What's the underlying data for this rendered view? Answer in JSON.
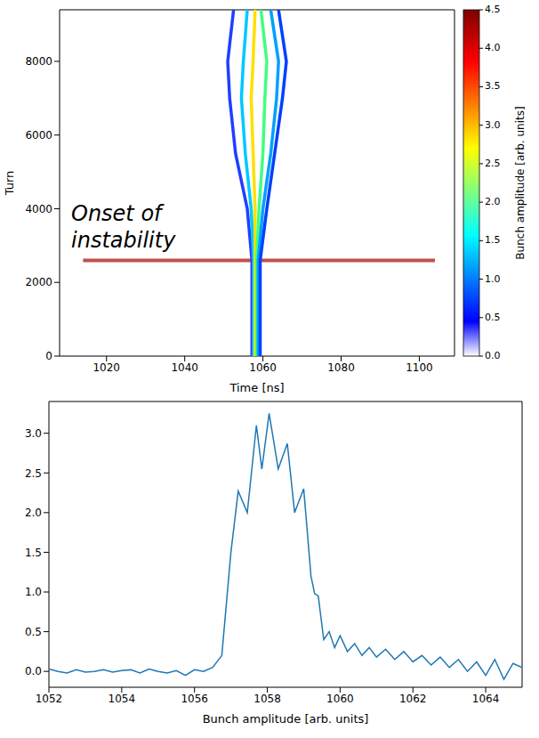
{
  "chart_data": [
    {
      "type": "line",
      "x_label": "Time [ns]",
      "y_label": "Turn",
      "xlim": [
        1008,
        1109
      ],
      "xticks": [
        1020,
        1040,
        1060,
        1080,
        1100
      ],
      "ylim": [
        0,
        9400
      ],
      "yticks": [
        0,
        2000,
        4000,
        6000,
        8000
      ],
      "series": [
        {
          "color": "#1f3fff",
          "x": [
            1057.2,
            1057.2,
            1056,
            1053,
            1051.5,
            1051,
            1052.5
          ],
          "values": [
            0,
            2600,
            4000,
            5500,
            7000,
            8000,
            9400
          ]
        },
        {
          "color": "#00c8ff",
          "x": [
            1057.6,
            1057.6,
            1057,
            1055.5,
            1054.5,
            1055,
            1056
          ],
          "values": [
            0,
            2600,
            4000,
            5500,
            7000,
            8000,
            9400
          ]
        },
        {
          "color": "#ffe000",
          "x": [
            1058,
            1058,
            1058,
            1057.5,
            1057,
            1057.5,
            1058
          ],
          "values": [
            0,
            2600,
            4000,
            5500,
            7000,
            8000,
            9400
          ]
        },
        {
          "color": "#40ff80",
          "x": [
            1058.4,
            1058.4,
            1059,
            1060,
            1060.5,
            1061,
            1059.5
          ],
          "values": [
            0,
            2600,
            4000,
            5500,
            7000,
            8000,
            9400
          ]
        },
        {
          "color": "#00a0ff",
          "x": [
            1058.8,
            1058.8,
            1060,
            1062,
            1063.5,
            1064,
            1062
          ],
          "values": [
            0,
            2600,
            4000,
            5500,
            7000,
            8000,
            9400
          ]
        },
        {
          "color": "#0040ff",
          "x": [
            1059.3,
            1059.3,
            1061,
            1063,
            1065,
            1066,
            1064
          ],
          "values": [
            0,
            2600,
            4000,
            5500,
            7000,
            8000,
            9400
          ]
        }
      ],
      "color_bar": {
        "label": "Bunch amplitude [arb. units]",
        "range": [
          0,
          4.5
        ],
        "ticks": [
          {
            "value": 0,
            "label": "0.0"
          },
          {
            "value": 0.5,
            "label": "0.5"
          },
          {
            "value": 1,
            "label": "1.0"
          },
          {
            "value": 1.5,
            "label": "1.5"
          },
          {
            "value": 2,
            "label": "2.0"
          },
          {
            "value": 2.5,
            "label": "2.5"
          },
          {
            "value": 3,
            "label": "3.0"
          },
          {
            "value": 3.5,
            "label": "3.5"
          },
          {
            "value": 4,
            "label": "4.0"
          },
          {
            "value": 4.5,
            "label": "4.5"
          }
        ]
      },
      "annotations": [
        {
          "text": "Onset of instability",
          "x": [
            1014,
            1104
          ],
          "y": 2600,
          "color": "#c0504d"
        }
      ]
    },
    {
      "type": "line",
      "x_label": "Bunch amplitude [arb. units]",
      "xlim": [
        1052,
        1065
      ],
      "xticks": [
        1052,
        1054,
        1056,
        1058,
        1060,
        1062,
        1064
      ],
      "ylim": [
        -0.2,
        3.4
      ],
      "yticks": [
        {
          "value": 0,
          "label": "0.0"
        },
        {
          "value": 0.5,
          "label": "0.5"
        },
        {
          "value": 1,
          "label": "1.0"
        },
        {
          "value": 1.5,
          "label": "1.5"
        },
        {
          "value": 2,
          "label": "2.0"
        },
        {
          "value": 2.5,
          "label": "2.5"
        },
        {
          "value": 3,
          "label": "3.0"
        }
      ],
      "series": [
        {
          "color": "#1f77b4",
          "x": [
            1052,
            1052.25,
            1052.5,
            1052.75,
            1053,
            1053.25,
            1053.5,
            1053.75,
            1054,
            1054.25,
            1054.5,
            1054.75,
            1055,
            1055.25,
            1055.5,
            1055.75,
            1056,
            1056.25,
            1056.5,
            1056.75,
            1057,
            1057.2,
            1057.45,
            1057.7,
            1057.85,
            1058.05,
            1058.3,
            1058.55,
            1058.75,
            1059,
            1059.2,
            1059.3,
            1059.4,
            1059.55,
            1059.7,
            1059.85,
            1060,
            1060.2,
            1060.4,
            1060.6,
            1060.8,
            1061,
            1061.25,
            1061.5,
            1061.75,
            1062,
            1062.25,
            1062.5,
            1062.75,
            1063,
            1063.25,
            1063.5,
            1063.75,
            1064,
            1064.25,
            1064.5,
            1064.75,
            1065
          ],
          "values": [
            0.03,
            0.0,
            -0.02,
            0.02,
            -0.01,
            0.0,
            0.02,
            -0.01,
            0.01,
            0.02,
            -0.02,
            0.03,
            0.0,
            -0.02,
            0.01,
            -0.05,
            0.02,
            0.0,
            0.05,
            0.2,
            1.5,
            2.27,
            2.0,
            3.1,
            2.55,
            3.25,
            2.55,
            2.87,
            2.0,
            2.3,
            1.2,
            0.98,
            0.95,
            0.4,
            0.5,
            0.3,
            0.45,
            0.25,
            0.35,
            0.2,
            0.3,
            0.18,
            0.28,
            0.15,
            0.25,
            0.12,
            0.2,
            0.08,
            0.18,
            0.05,
            0.15,
            0.0,
            0.12,
            -0.05,
            0.15,
            -0.1,
            0.1,
            0.05
          ]
        }
      ]
    }
  ]
}
